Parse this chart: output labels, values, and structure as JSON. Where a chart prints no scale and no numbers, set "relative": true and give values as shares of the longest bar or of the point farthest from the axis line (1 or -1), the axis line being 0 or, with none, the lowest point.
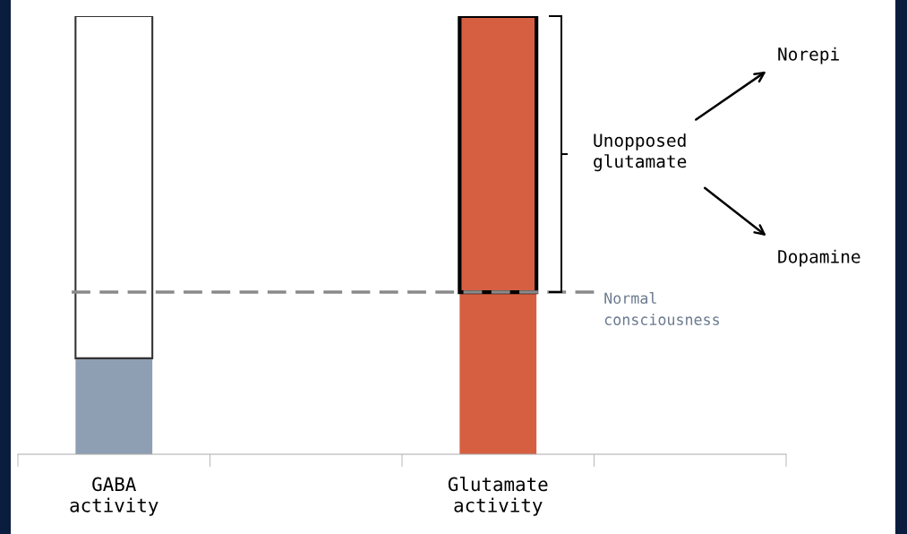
{
  "chart_data": {
    "type": "bar",
    "relative": true,
    "stacked": true,
    "categories": [
      "GABA\nactivity",
      null,
      "Glutamate\nactivity",
      null
    ],
    "series": [
      {
        "colors": [
          "#8f9fb3",
          null,
          "#d65f42",
          null
        ],
        "values": [
          0.219,
          null,
          0.37,
          null
        ]
      },
      {
        "colors": [
          "#ffffff",
          null,
          "#d65f42",
          null
        ],
        "values": [
          0.781,
          null,
          0.63,
          null
        ]
      }
    ],
    "ref_lines": [
      {
        "axis": "y",
        "value": 0.37,
        "label": "Normal\nconsciousness",
        "color": "#8a8a8a",
        "line_style": "dashed"
      }
    ],
    "annotations": [
      "Unopposed\nglutamate",
      "Norepi",
      "Dopamine"
    ],
    "grid": false,
    "legend": false
  }
}
